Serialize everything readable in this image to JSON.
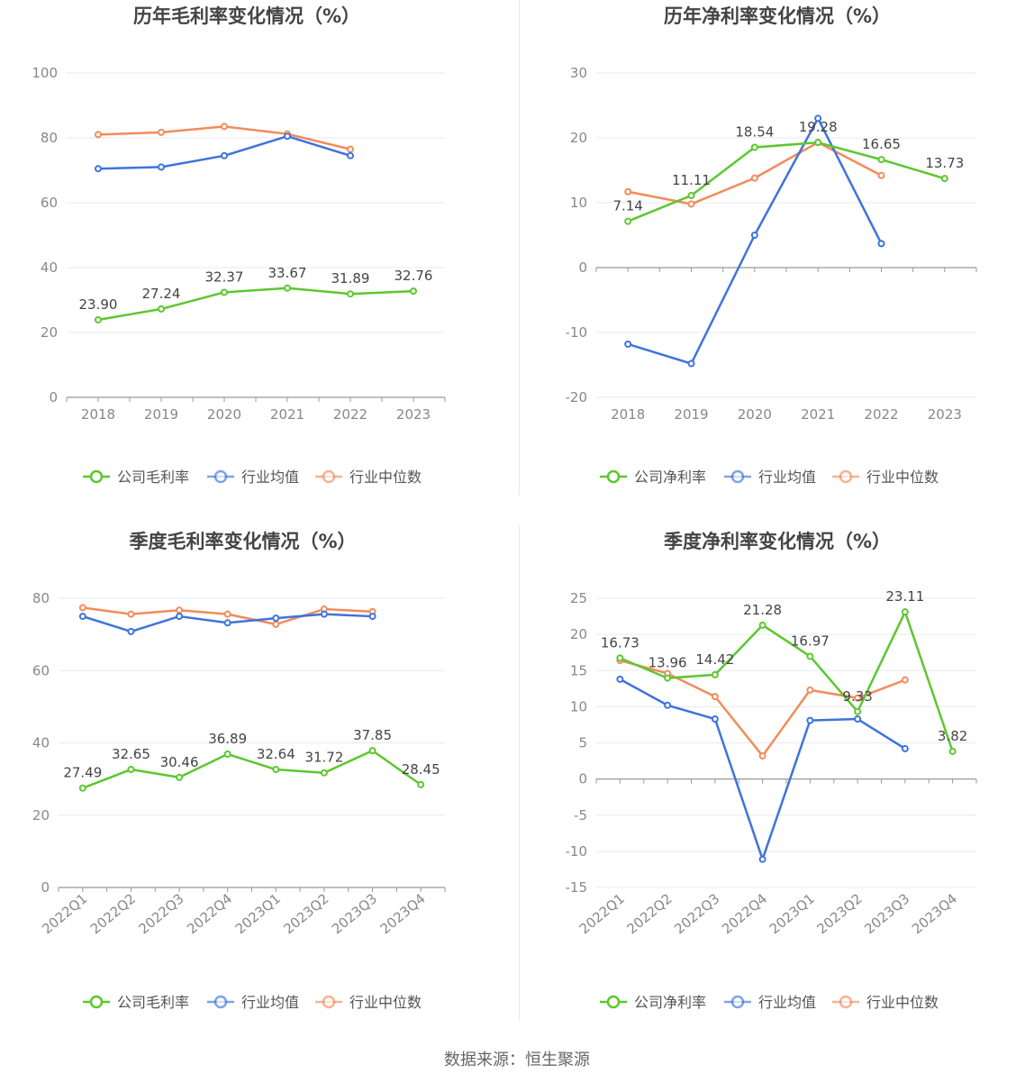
{
  "source_text": "数据来源：恒生聚源",
  "legend_colors": {
    "company": "#5cc72f",
    "industry_avg": "#3e73db",
    "industry_median": "#f28b5b"
  },
  "chart_data": [
    {
      "type": "line",
      "title": "历年毛利率变化情况（%）",
      "categories": [
        "2018",
        "2019",
        "2020",
        "2021",
        "2022",
        "2023"
      ],
      "ylim": [
        0,
        100
      ],
      "yticks": [
        0,
        20,
        40,
        60,
        80,
        100
      ],
      "grid": true,
      "legend_position": "bottom",
      "series": [
        {
          "name": "公司毛利率",
          "key": "company",
          "values": [
            23.9,
            27.24,
            32.37,
            33.67,
            31.89,
            32.76
          ],
          "labels": [
            "23.90",
            "27.24",
            "32.37",
            "33.67",
            "31.89",
            "32.76"
          ]
        },
        {
          "name": "行业均值",
          "key": "industry_avg",
          "values": [
            70.5,
            71.0,
            74.5,
            80.5,
            74.5,
            null
          ]
        },
        {
          "name": "行业中位数",
          "key": "industry_median",
          "values": [
            81.0,
            81.7,
            83.5,
            81.2,
            76.5,
            null
          ]
        }
      ]
    },
    {
      "type": "line",
      "title": "历年净利率变化情况（%）",
      "categories": [
        "2018",
        "2019",
        "2020",
        "2021",
        "2022",
        "2023"
      ],
      "ylim": [
        -20,
        30
      ],
      "yticks": [
        -20,
        -10,
        0,
        10,
        20,
        30
      ],
      "grid": true,
      "legend_position": "bottom",
      "series": [
        {
          "name": "公司净利率",
          "key": "company",
          "values": [
            7.14,
            11.11,
            18.54,
            19.28,
            16.65,
            13.73
          ],
          "labels": [
            "7.14",
            "11.11",
            "18.54",
            "19.28",
            "16.65",
            "13.73"
          ]
        },
        {
          "name": "行业均值",
          "key": "industry_avg",
          "values": [
            -11.8,
            -14.8,
            5.0,
            23.0,
            3.7,
            null
          ]
        },
        {
          "name": "行业中位数",
          "key": "industry_median",
          "values": [
            11.7,
            9.8,
            13.8,
            19.3,
            14.2,
            null
          ]
        }
      ]
    },
    {
      "type": "line",
      "title": "季度毛利率变化情况（%）",
      "categories": [
        "2022Q1",
        "2022Q2",
        "2022Q3",
        "2022Q4",
        "2023Q1",
        "2023Q2",
        "2023Q3",
        "2023Q4"
      ],
      "ylim": [
        0,
        80
      ],
      "yticks": [
        0,
        20,
        40,
        60,
        80
      ],
      "grid": true,
      "legend_position": "bottom",
      "series": [
        {
          "name": "公司毛利率",
          "key": "company",
          "values": [
            27.49,
            32.65,
            30.46,
            36.89,
            32.64,
            31.72,
            37.85,
            28.45
          ],
          "labels": [
            "27.49",
            "32.65",
            "30.46",
            "36.89",
            "32.64",
            "31.72",
            "37.85",
            "28.45"
          ]
        },
        {
          "name": "行业均值",
          "key": "industry_avg",
          "values": [
            75.0,
            70.8,
            75.0,
            73.2,
            74.5,
            75.6,
            75.0,
            null
          ]
        },
        {
          "name": "行业中位数",
          "key": "industry_median",
          "values": [
            77.4,
            75.6,
            76.7,
            75.6,
            72.8,
            77.0,
            76.3,
            null
          ]
        }
      ]
    },
    {
      "type": "line",
      "title": "季度净利率变化情况（%）",
      "categories": [
        "2022Q1",
        "2022Q2",
        "2022Q3",
        "2022Q4",
        "2023Q1",
        "2023Q2",
        "2023Q3",
        "2023Q4"
      ],
      "ylim": [
        -15,
        25
      ],
      "yticks": [
        -15,
        -10,
        -5,
        0,
        5,
        10,
        15,
        20,
        25
      ],
      "grid": true,
      "legend_position": "bottom",
      "series": [
        {
          "name": "公司净利率",
          "key": "company",
          "values": [
            16.73,
            13.96,
            14.42,
            21.28,
            16.97,
            9.33,
            23.11,
            3.82
          ],
          "labels": [
            "16.73",
            "13.96",
            "14.42",
            "21.28",
            "16.97",
            "9.33",
            "23.11",
            "3.82"
          ]
        },
        {
          "name": "行业均值",
          "key": "industry_avg",
          "values": [
            13.8,
            10.2,
            8.3,
            -11.1,
            8.1,
            8.3,
            4.2,
            null
          ]
        },
        {
          "name": "行业中位数",
          "key": "industry_median",
          "values": [
            16.4,
            14.6,
            11.4,
            3.2,
            12.3,
            11.2,
            13.7,
            null
          ]
        }
      ]
    }
  ]
}
